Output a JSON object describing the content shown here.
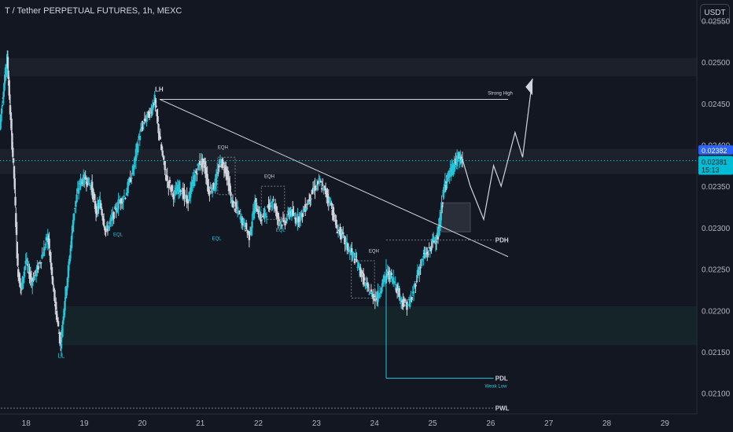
{
  "title": "T / Tether PERPETUAL FUTURES, 1h, MEXC",
  "currency_button": "USDT",
  "colors": {
    "background": "#131722",
    "candle": "#d1d4dc",
    "candle_alt": "#26c6da",
    "zone": "#1e2a33",
    "price_label_bg": "#2962ff",
    "countdown_bg": "#00bcd4",
    "text": "#d1d4dc"
  },
  "chart_data": {
    "type": "candlestick",
    "title": "T / Tether PERPETUAL FUTURES, 1h, MEXC",
    "xlabel": "",
    "ylabel": "",
    "x_ticks": [
      "18",
      "19",
      "20",
      "21",
      "22",
      "23",
      "24",
      "25",
      "26",
      "27",
      "28",
      "29"
    ],
    "y_ticks": [
      "0.02100",
      "0.02150",
      "0.02200",
      "0.02250",
      "0.02300",
      "0.02350",
      "0.02400",
      "0.02450",
      "0.02500",
      "0.02550"
    ],
    "ylim": [
      0.02075,
      0.02575
    ],
    "xlim": [
      17.55,
      29.55
    ],
    "current_price": "0.02382",
    "last_price": "0.02381",
    "countdown": "15:13",
    "price_path": [
      [
        17.55,
        0.0242
      ],
      [
        17.62,
        0.0247
      ],
      [
        17.68,
        0.02505
      ],
      [
        17.73,
        0.0244
      ],
      [
        17.8,
        0.0236
      ],
      [
        17.86,
        0.0225
      ],
      [
        17.92,
        0.02225
      ],
      [
        18.0,
        0.0226
      ],
      [
        18.1,
        0.02235
      ],
      [
        18.2,
        0.0225
      ],
      [
        18.3,
        0.0227
      ],
      [
        18.38,
        0.0229
      ],
      [
        18.45,
        0.0224
      ],
      [
        18.52,
        0.022
      ],
      [
        18.6,
        0.02158
      ],
      [
        18.66,
        0.02205
      ],
      [
        18.75,
        0.0226
      ],
      [
        18.83,
        0.0232
      ],
      [
        18.93,
        0.02355
      ],
      [
        19.03,
        0.0236
      ],
      [
        19.13,
        0.0235
      ],
      [
        19.21,
        0.0232
      ],
      [
        19.28,
        0.0233
      ],
      [
        19.38,
        0.02295
      ],
      [
        19.48,
        0.0231
      ],
      [
        19.6,
        0.0233
      ],
      [
        19.72,
        0.0234
      ],
      [
        19.85,
        0.0237
      ],
      [
        19.95,
        0.0241
      ],
      [
        20.05,
        0.0243
      ],
      [
        20.15,
        0.0244
      ],
      [
        20.22,
        0.02455
      ],
      [
        20.3,
        0.0241
      ],
      [
        20.42,
        0.0236
      ],
      [
        20.55,
        0.0234
      ],
      [
        20.65,
        0.0235
      ],
      [
        20.78,
        0.0233
      ],
      [
        20.9,
        0.0236
      ],
      [
        21.0,
        0.0238
      ],
      [
        21.08,
        0.02375
      ],
      [
        21.15,
        0.02345
      ],
      [
        21.25,
        0.0235
      ],
      [
        21.35,
        0.0238
      ],
      [
        21.45,
        0.0237
      ],
      [
        21.55,
        0.0233
      ],
      [
        21.65,
        0.0232
      ],
      [
        21.75,
        0.02305
      ],
      [
        21.85,
        0.0229
      ],
      [
        21.95,
        0.0233
      ],
      [
        22.05,
        0.0231
      ],
      [
        22.15,
        0.0232
      ],
      [
        22.25,
        0.02335
      ],
      [
        22.35,
        0.0231
      ],
      [
        22.45,
        0.02305
      ],
      [
        22.55,
        0.0232
      ],
      [
        22.65,
        0.0231
      ],
      [
        22.75,
        0.02315
      ],
      [
        22.85,
        0.0233
      ],
      [
        22.95,
        0.02345
      ],
      [
        23.05,
        0.02355
      ],
      [
        23.15,
        0.02345
      ],
      [
        23.25,
        0.0233
      ],
      [
        23.35,
        0.023
      ],
      [
        23.45,
        0.0229
      ],
      [
        23.55,
        0.02275
      ],
      [
        23.65,
        0.02265
      ],
      [
        23.75,
        0.0225
      ],
      [
        23.85,
        0.0223
      ],
      [
        23.95,
        0.0222
      ],
      [
        24.05,
        0.02215
      ],
      [
        24.15,
        0.02235
      ],
      [
        24.25,
        0.02245
      ],
      [
        24.35,
        0.02235
      ],
      [
        24.45,
        0.02215
      ],
      [
        24.55,
        0.02205
      ],
      [
        24.65,
        0.02215
      ],
      [
        24.75,
        0.02245
      ],
      [
        24.85,
        0.02265
      ],
      [
        24.95,
        0.02272
      ],
      [
        25.02,
        0.02285
      ],
      [
        25.1,
        0.0229
      ],
      [
        25.16,
        0.02325
      ],
      [
        25.22,
        0.02355
      ],
      [
        25.3,
        0.02365
      ],
      [
        25.38,
        0.02375
      ],
      [
        25.45,
        0.02385
      ],
      [
        25.52,
        0.02381
      ]
    ],
    "lines": [
      {
        "name": "LH",
        "x": 20.3,
        "y": 0.02455
      },
      {
        "name": "LL",
        "x": 18.6,
        "y": 0.02158
      }
    ],
    "levels": [
      {
        "label": "Strong High",
        "price": 0.02455
      },
      {
        "label": "PDH",
        "price": 0.02287
      },
      {
        "label": "PDL",
        "price": 0.02118
      },
      {
        "label": "Weak Low",
        "price": 0.02118
      },
      {
        "label": "PWL",
        "price": 0.02082
      }
    ],
    "pattern_labels": [
      "EQH",
      "EQL",
      "EQL",
      "EQH",
      "EQL",
      "EQH"
    ],
    "grid": false,
    "legend": "none"
  }
}
